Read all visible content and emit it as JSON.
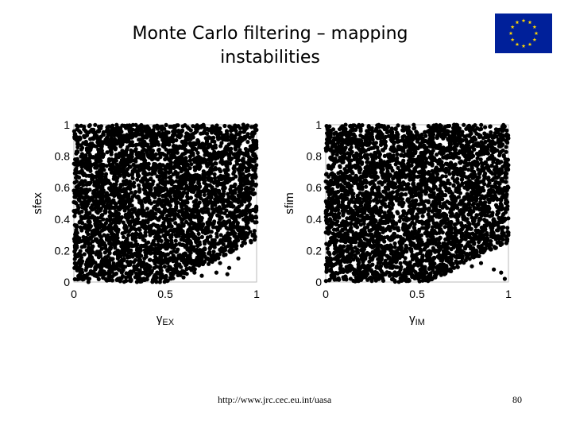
{
  "slide": {
    "title_line1": "Monte Carlo filtering – mapping",
    "title_line2": "instabilities",
    "footer_url": "http://www.jrc.cec.eu.int/uasa",
    "page_number": "80",
    "logo": "eu-flag-icon",
    "colors": {
      "flag_blue": "#00209a",
      "flag_star": "#ffd700",
      "points": "#000000"
    }
  },
  "chart_data": [
    {
      "type": "scatter",
      "xlabel_symbol": "γ",
      "xlabel_sub": "EX",
      "ylabel": "sfex",
      "xlim": [
        0,
        1
      ],
      "ylim": [
        0,
        1
      ],
      "xticks": [
        "0",
        "0.5",
        "1"
      ],
      "yticks": [
        "0",
        "0.2",
        "0.4",
        "0.6",
        "0.8",
        "1"
      ],
      "n_points": 4000,
      "stable_region_boundary": [
        [
          0.5,
          0
        ],
        [
          0.62,
          0.05
        ],
        [
          0.75,
          0.12
        ],
        [
          0.88,
          0.2
        ],
        [
          1.0,
          0.27
        ]
      ],
      "outliers": [
        [
          0.6,
          0.03
        ],
        [
          0.7,
          0.04
        ],
        [
          0.78,
          0.06
        ],
        [
          0.84,
          0.05
        ],
        [
          0.85,
          0.09
        ],
        [
          0.8,
          0.12
        ],
        [
          0.9,
          0.15
        ],
        [
          0.66,
          0.06
        ]
      ],
      "grid": false
    },
    {
      "type": "scatter",
      "xlabel_symbol": "γ",
      "xlabel_sub": "IM",
      "ylabel": "sfim",
      "xlim": [
        0,
        1
      ],
      "ylim": [
        0,
        1
      ],
      "xticks": [
        "0",
        "0.5",
        "1"
      ],
      "yticks": [
        "0",
        "0.2",
        "0.4",
        "0.6",
        "0.8",
        "1"
      ],
      "n_points": 4000,
      "stable_region_boundary": [
        [
          0.55,
          0
        ],
        [
          0.68,
          0.06
        ],
        [
          0.8,
          0.14
        ],
        [
          0.9,
          0.2
        ],
        [
          1.0,
          0.25
        ]
      ],
      "outliers": [
        [
          0.6,
          0.03
        ],
        [
          0.65,
          0.05
        ],
        [
          0.8,
          0.1
        ],
        [
          0.92,
          0.08
        ],
        [
          0.96,
          0.06
        ],
        [
          0.98,
          0.02
        ],
        [
          0.85,
          0.12
        ]
      ],
      "grid": false
    }
  ]
}
